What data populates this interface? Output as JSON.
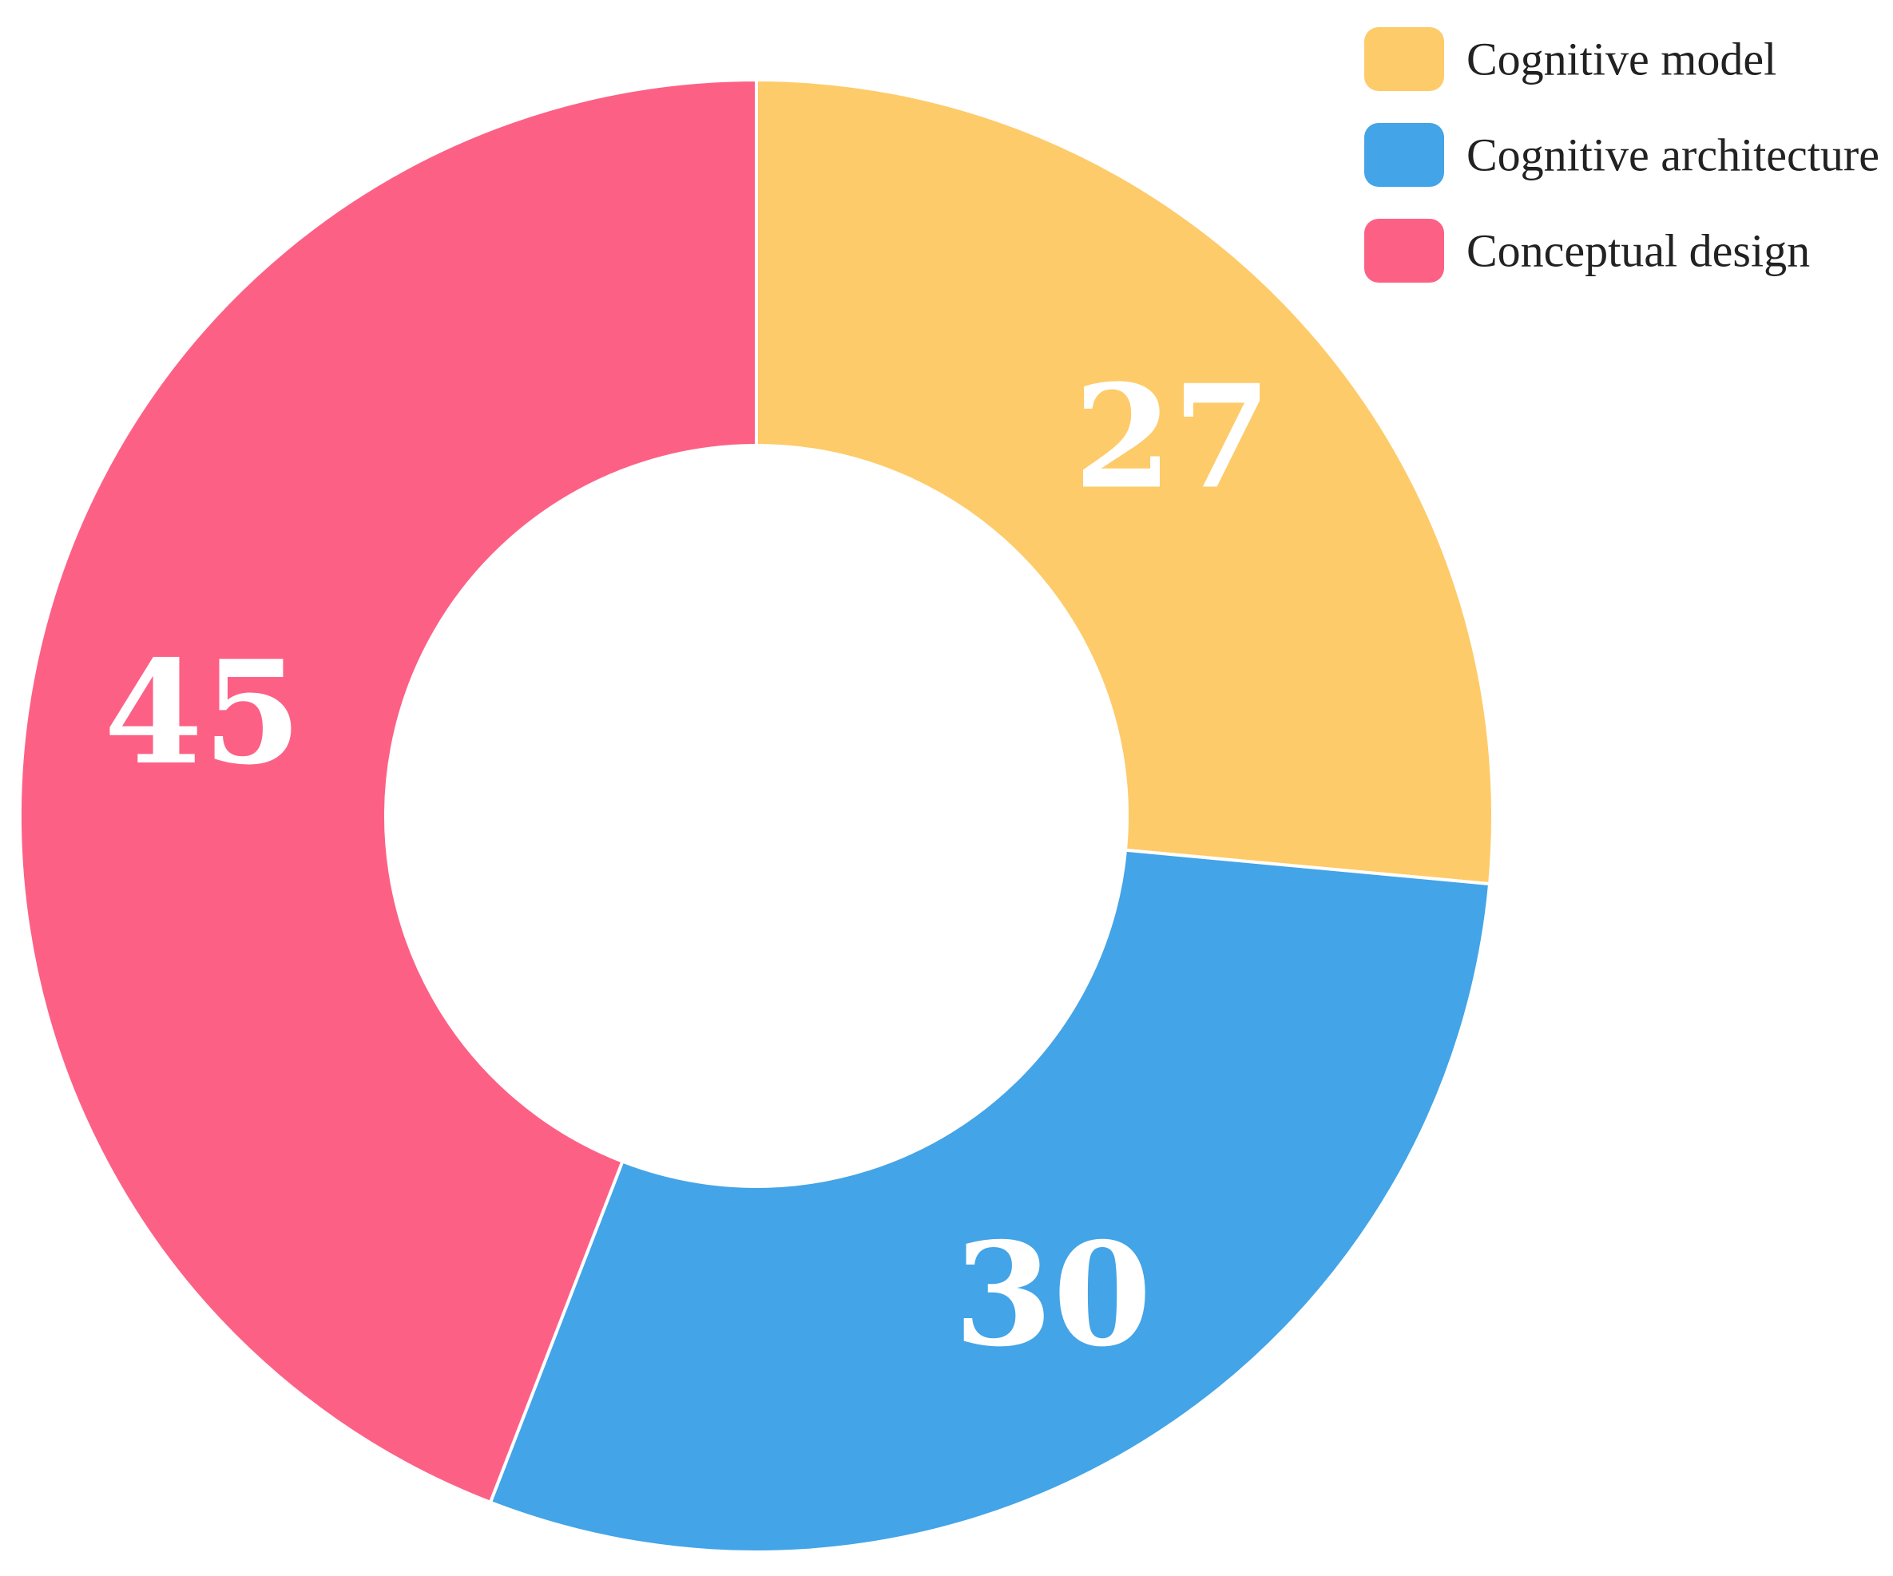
{
  "chart_data": {
    "type": "pie",
    "variant": "donut",
    "categories": [
      "Cognitive model",
      "Cognitive architecture",
      "Conceptual design"
    ],
    "values": [
      27,
      30,
      45
    ],
    "colors": [
      "#FDCB69",
      "#43A4E7",
      "#FC6185"
    ],
    "data_labels": [
      "27",
      "30",
      "45"
    ],
    "title": "",
    "legend": {
      "placement": "top-right",
      "entries": [
        "Cognitive model",
        "Cognitive architecture",
        "Conceptual design"
      ]
    },
    "start_angle": "12 o'clock",
    "direction": "clockwise"
  }
}
